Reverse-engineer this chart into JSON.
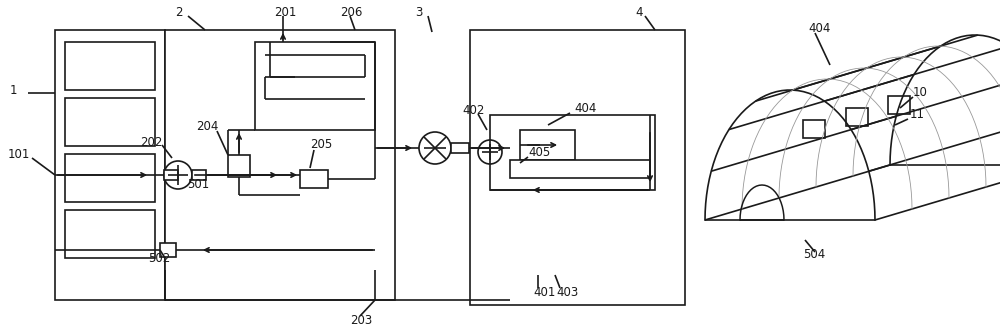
{
  "bg_color": "#ffffff",
  "line_color": "#1a1a1a",
  "lw": 1.2,
  "fig_width": 10.0,
  "fig_height": 3.36,
  "dpi": 100
}
